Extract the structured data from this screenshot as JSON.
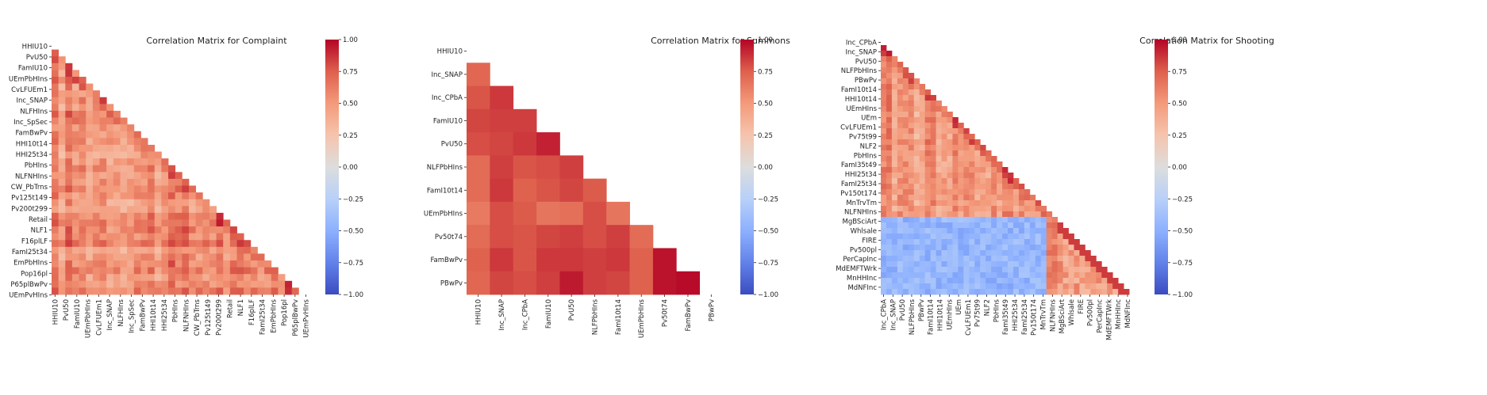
{
  "colorbar": {
    "ticks": [
      "1.00",
      "0.75",
      "0.50",
      "0.25",
      "0.00",
      "−0.25",
      "−0.50",
      "−0.75",
      "−1.00"
    ],
    "tick_values": [
      1.0,
      0.75,
      0.5,
      0.25,
      0.0,
      -0.25,
      -0.5,
      -0.75,
      -1.0
    ],
    "colormap": "coolwarm",
    "color_low": "#3b4cc0",
    "color_mid": "#dddddd",
    "color_high": "#b40426"
  },
  "chart_data": [
    {
      "type": "heatmap",
      "title": "Correlation Matrix for Complaint",
      "mask": "upper-triangle",
      "n": 37,
      "value_range": [
        -1,
        1
      ],
      "ytick_labels": [
        "HHIU10",
        "PvU50",
        "FamIU10",
        "UEmPbHIns",
        "CvLFUEm1",
        "Inc_SNAP",
        "NLFHIns",
        "Inc_SpSec",
        "FamBwPv",
        "HHI10t14",
        "HHI25t34",
        "PbHIns",
        "NLFNHIns",
        "CW_PbTrns",
        "Pv125t149",
        "Pv200t299",
        "Retail",
        "NLF1",
        "F16plLF",
        "FamI25t34",
        "EmPbHIns",
        "Pop16pl",
        "P65plBwPv",
        "UEmPvHIns"
      ],
      "xtick_labels": [
        "HHIU10",
        "PvU50",
        "FamIU10",
        "UEmPbHIns",
        "CvLFUEm1",
        "Inc_SNAP",
        "NLFHIns",
        "Inc_SpSec",
        "FamBwPv",
        "HHI10t14",
        "HHI25t34",
        "PbHIns",
        "NLFNHIns",
        "CW_PbTrns",
        "Pv125t149",
        "Pv200t299",
        "Retail",
        "NLF1",
        "F16plLF",
        "FamI25t34",
        "EmPbHIns",
        "Pop16pl",
        "P65plBwPv",
        "UEmPvHIns"
      ],
      "approx_value_range_observed": [
        0.05,
        0.95
      ]
    },
    {
      "type": "heatmap",
      "title": "Correlation Matrix for Summons",
      "mask": "upper-triangle",
      "n": 11,
      "value_range": [
        -1,
        1
      ],
      "labels": [
        "HHIU10",
        "Inc_SNAP",
        "Inc_CPbA",
        "FamIU10",
        "PvU50",
        "NLFPbHIns",
        "FamI10t14",
        "UEmPbHIns",
        "Pv50t74",
        "FamBwPv",
        "PBwPv"
      ],
      "matrix": [
        [],
        [
          0.72
        ],
        [
          0.78,
          0.86
        ],
        [
          0.82,
          0.84,
          0.84
        ],
        [
          0.8,
          0.82,
          0.86,
          0.92
        ],
        [
          0.7,
          0.84,
          0.78,
          0.8,
          0.84
        ],
        [
          0.7,
          0.86,
          0.74,
          0.78,
          0.82,
          0.76
        ],
        [
          0.64,
          0.8,
          0.76,
          0.66,
          0.68,
          0.8,
          0.66
        ],
        [
          0.7,
          0.8,
          0.78,
          0.82,
          0.84,
          0.8,
          0.84,
          0.7
        ],
        [
          0.74,
          0.86,
          0.78,
          0.86,
          0.86,
          0.84,
          0.86,
          0.74,
          0.96
        ],
        [
          0.72,
          0.82,
          0.8,
          0.84,
          0.94,
          0.84,
          0.82,
          0.74,
          0.96,
          0.98
        ]
      ]
    },
    {
      "type": "heatmap",
      "title": "Correlation Matrix for Shooting",
      "mask": "upper-triangle",
      "n": 46,
      "value_range": [
        -1,
        1
      ],
      "ytick_labels": [
        "Inc_CPbA",
        "Inc_SNAP",
        "PvU50",
        "NLFPbHIns",
        "PBwPv",
        "FamI10t14",
        "HHI10t14",
        "UEmHIns",
        "UEm",
        "CvLFUEm1",
        "Pv75t99",
        "NLF2",
        "PbHIns",
        "FamI35t49",
        "HHI25t34",
        "FamI25t34",
        "Pv150t174",
        "MnTrvTm",
        "NLFNHIns",
        "MgBSciArt",
        "Whlsale",
        "FIRE",
        "Pv500pl",
        "PerCapInc",
        "MdEMFTWrk",
        "MnHHInc",
        "MdNFInc"
      ],
      "xtick_labels": [
        "Inc_CPbA",
        "Inc_SNAP",
        "PvU50",
        "NLFPbHIns",
        "PBwPv",
        "FamI10t14",
        "HHI10t14",
        "UEmHIns",
        "UEm",
        "CvLFUEm1",
        "Pv75t99",
        "NLF2",
        "PbHIns",
        "FamI35t49",
        "HHI25t34",
        "FamI25t34",
        "Pv150t174",
        "MnTrvTm",
        "NLFNHIns",
        "MgBSciArt",
        "Whlsale",
        "FIRE",
        "Pv500pl",
        "PerCapInc",
        "MdEMFTWrk",
        "MnHHInc",
        "MdNFInc"
      ],
      "approx_value_range_observed": [
        -0.6,
        0.95
      ]
    }
  ]
}
